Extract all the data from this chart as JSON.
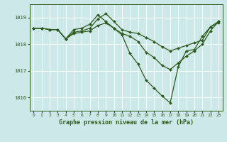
{
  "title": "Graphe pression niveau de la mer (hPa)",
  "bg_color": "#cce8e8",
  "line_color": "#2d5a1b",
  "grid_color": "#ffffff",
  "xlim": [
    -0.5,
    23.5
  ],
  "ylim": [
    1015.5,
    1019.5
  ],
  "yticks": [
    1016,
    1017,
    1018,
    1019
  ],
  "xticks": [
    0,
    1,
    2,
    3,
    4,
    5,
    6,
    7,
    8,
    9,
    10,
    11,
    12,
    13,
    14,
    15,
    16,
    17,
    18,
    19,
    20,
    21,
    22,
    23
  ],
  "series": [
    [
      1018.6,
      1018.6,
      1018.55,
      1018.55,
      1018.2,
      1018.55,
      1018.6,
      1018.75,
      1019.1,
      1018.85,
      1018.6,
      1018.35,
      1017.65,
      1017.25,
      1016.65,
      1016.35,
      1016.05,
      1015.8,
      1017.15,
      1017.75,
      1017.8,
      1018.3,
      1018.65,
      1018.8
    ],
    [
      1018.6,
      1018.6,
      1018.55,
      1018.55,
      1018.2,
      1018.45,
      1018.5,
      1018.6,
      1018.95,
      1019.15,
      1018.85,
      1018.55,
      1018.45,
      1018.4,
      1018.25,
      1018.1,
      1017.9,
      1017.75,
      1017.85,
      1017.95,
      1018.05,
      1018.15,
      1018.65,
      1018.85
    ],
    [
      1018.6,
      1018.6,
      1018.55,
      1018.55,
      1018.2,
      1018.4,
      1018.45,
      1018.5,
      1018.7,
      1018.8,
      1018.6,
      1018.4,
      1018.3,
      1018.1,
      1017.7,
      1017.5,
      1017.2,
      1017.05,
      1017.3,
      1017.55,
      1017.75,
      1018.0,
      1018.5,
      1018.85
    ]
  ]
}
